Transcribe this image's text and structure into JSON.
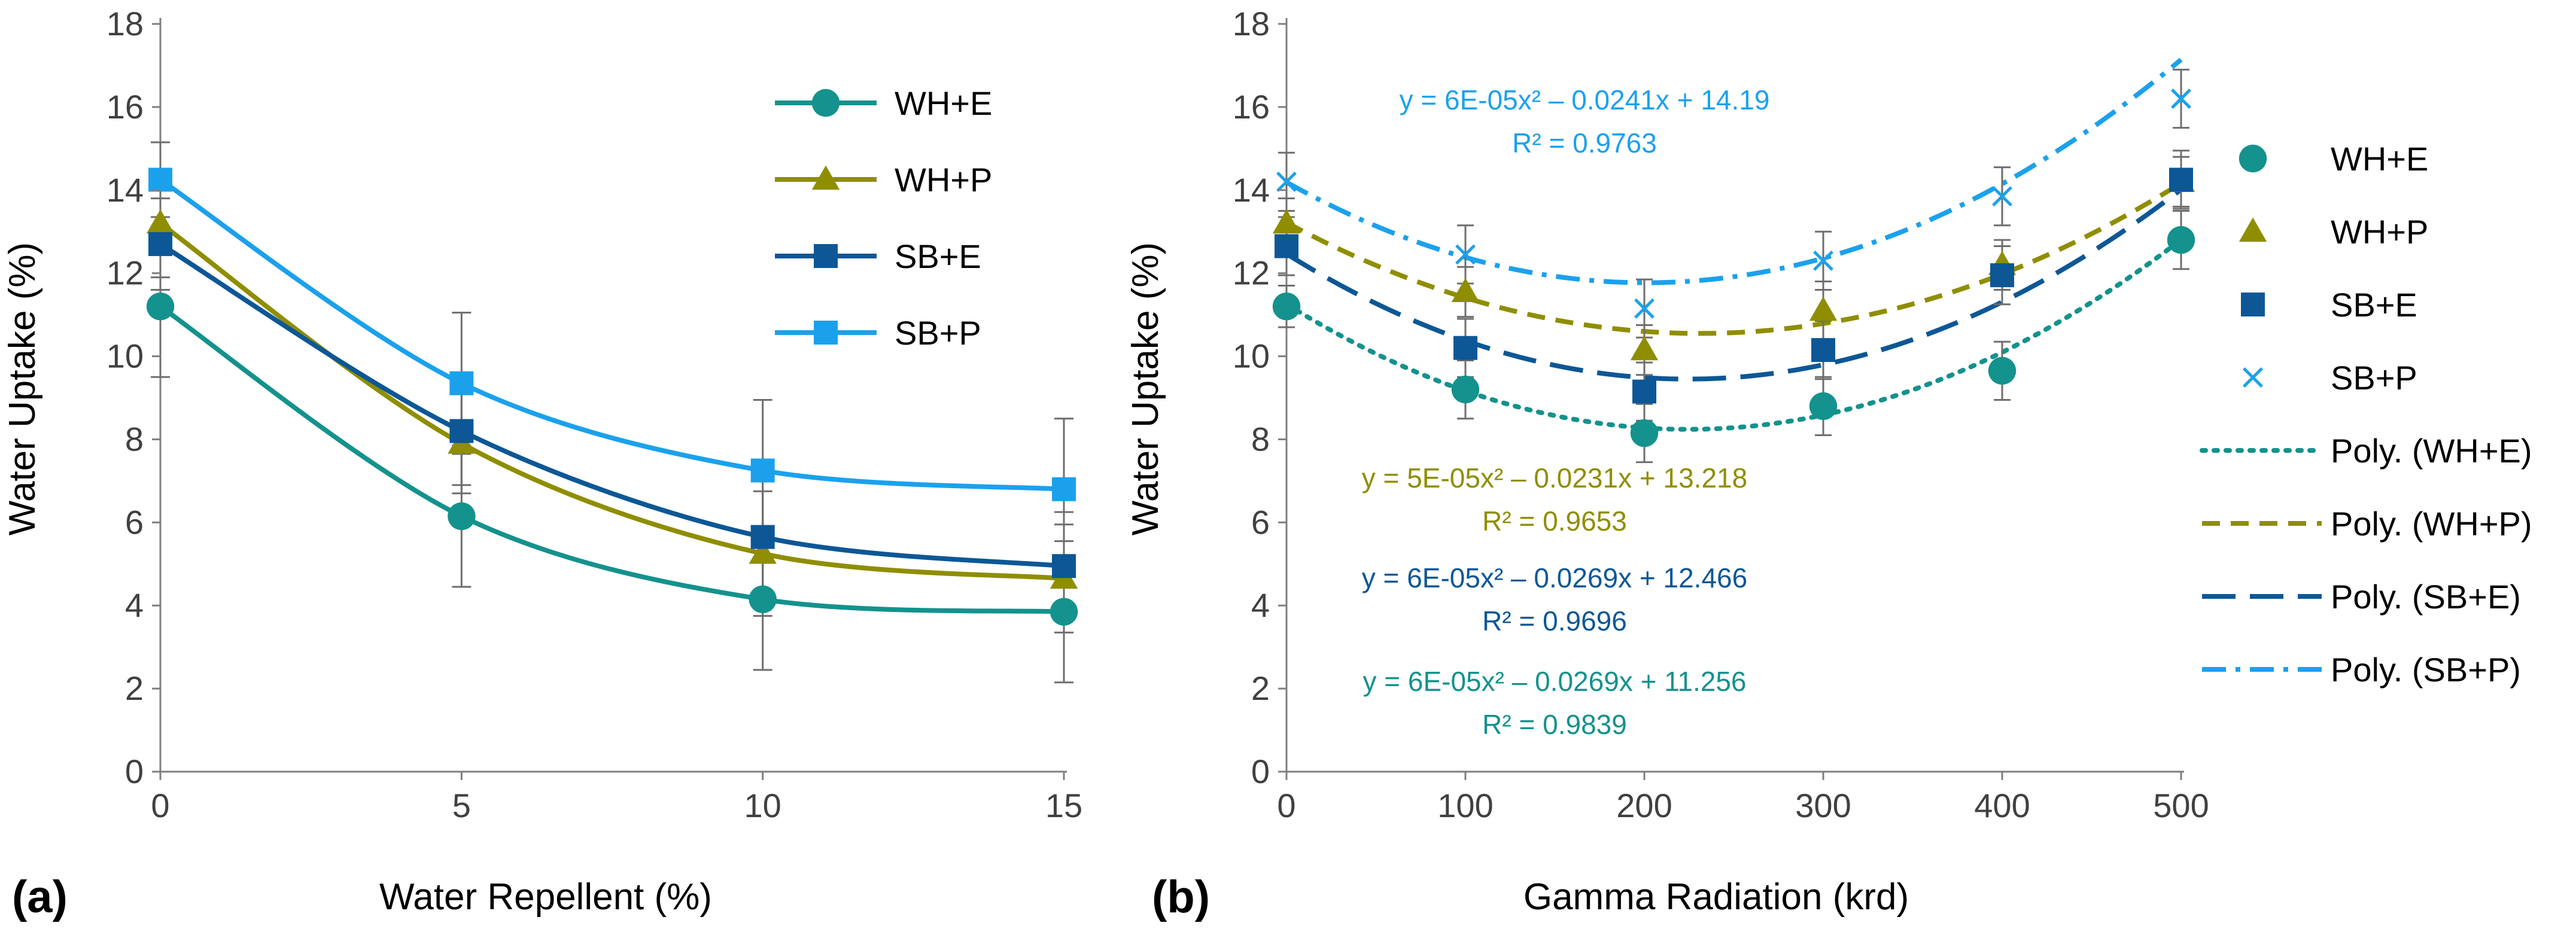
{
  "chart_data": [
    {
      "type": "line",
      "panel_label": "(a)",
      "xlabel": "Water Repellent (%)",
      "ylabel": "Water Uptake (%)",
      "x": [
        0,
        5,
        10,
        15
      ],
      "xticks": [
        "0",
        "5",
        "10",
        "15"
      ],
      "xlim": [
        0,
        15
      ],
      "ylim": [
        0,
        18
      ],
      "yticks": [
        "0",
        "2",
        "4",
        "6",
        "8",
        "10",
        "12",
        "14",
        "16",
        "18"
      ],
      "legend_position": "top-right",
      "series": [
        {
          "name": "WH+E",
          "marker": "circle",
          "color": "#14928d",
          "values": [
            11.2,
            6.15,
            4.15,
            3.85
          ],
          "errors": [
            1.7,
            1.7,
            1.7,
            1.7
          ]
        },
        {
          "name": "WH+P",
          "marker": "triangle",
          "color": "#8f8e00",
          "values": [
            13.2,
            7.9,
            5.25,
            4.65
          ],
          "errors": [
            1.3,
            1.2,
            1.5,
            1.3
          ]
        },
        {
          "name": "SB+E",
          "marker": "square",
          "color": "#0d5796",
          "values": [
            12.7,
            8.2,
            5.65,
            4.95
          ],
          "errors": [
            1.1,
            1.3,
            1.5,
            1.3
          ]
        },
        {
          "name": "SB+P",
          "marker": "square",
          "color": "#1ba1ec",
          "values": [
            14.25,
            9.35,
            7.25,
            6.8
          ],
          "errors": [
            0.9,
            1.7,
            1.7,
            1.7
          ]
        }
      ]
    },
    {
      "type": "scatter",
      "panel_label": "(b)",
      "xlabel": "Gamma Radiation (krd)",
      "ylabel": "Water Uptake (%)",
      "x": [
        0,
        100,
        200,
        300,
        400,
        500
      ],
      "xticks": [
        "0",
        "100",
        "200",
        "300",
        "400",
        "500"
      ],
      "xlim": [
        0,
        500
      ],
      "ylim": [
        0,
        18
      ],
      "yticks": [
        "0",
        "2",
        "4",
        "6",
        "8",
        "10",
        "12",
        "14",
        "16",
        "18"
      ],
      "legend_position": "right",
      "series": [
        {
          "name": "WH+E",
          "marker": "circle",
          "color": "#14928d",
          "values": [
            11.2,
            9.2,
            8.15,
            8.8,
            9.65,
            12.8
          ],
          "errors": [
            0.5,
            0.7,
            0.7,
            0.7,
            0.7,
            0.7
          ]
        },
        {
          "name": "WH+P",
          "marker": "triangle",
          "color": "#8f8e00",
          "values": [
            13.2,
            11.55,
            10.15,
            11.1,
            12.2,
            14.2
          ],
          "errors": [
            0.6,
            0.6,
            0.6,
            0.7,
            0.6,
            0.6
          ]
        },
        {
          "name": "SB+E",
          "marker": "square",
          "color": "#0d5796",
          "values": [
            12.65,
            10.2,
            9.15,
            10.15,
            11.95,
            14.25
          ],
          "errors": [
            0.7,
            0.7,
            0.7,
            0.7,
            0.7,
            0.7
          ]
        },
        {
          "name": "SB+P",
          "marker": "x",
          "color": "#1ba1ec",
          "values": [
            14.2,
            12.45,
            11.15,
            12.3,
            13.85,
            16.2
          ],
          "errors": [
            0.7,
            0.7,
            0.7,
            0.7,
            0.7,
            0.7
          ]
        }
      ],
      "trendlines": [
        {
          "name": "Poly. (WH+E)",
          "color": "#14928d",
          "dash": "dotted",
          "coeffs": [
            6e-05,
            -0.0269,
            11.256
          ],
          "equation": "y = 6E-05x² – 0.0269x + 11.256",
          "r2": "R² = 0.9839"
        },
        {
          "name": "Poly. (WH+P)",
          "color": "#8f8e00",
          "dash": "dashed",
          "coeffs": [
            5e-05,
            -0.0231,
            13.218
          ],
          "equation": "y = 5E-05x² – 0.0231x + 13.218",
          "r2": "R² = 0.9653"
        },
        {
          "name": "Poly. (SB+E)",
          "color": "#0d5796",
          "dash": "long-dash",
          "coeffs": [
            6e-05,
            -0.0269,
            12.466
          ],
          "equation": "y = 6E-05x² – 0.0269x + 12.466",
          "r2": "R² = 0.9696"
        },
        {
          "name": "Poly. (SB+P)",
          "color": "#1ba1ec",
          "dash": "dash-dot",
          "coeffs": [
            6e-05,
            -0.0241,
            14.19
          ],
          "equation": "y = 6E-05x² – 0.0241x + 14.19",
          "r2": "R² = 0.9763"
        }
      ]
    }
  ]
}
